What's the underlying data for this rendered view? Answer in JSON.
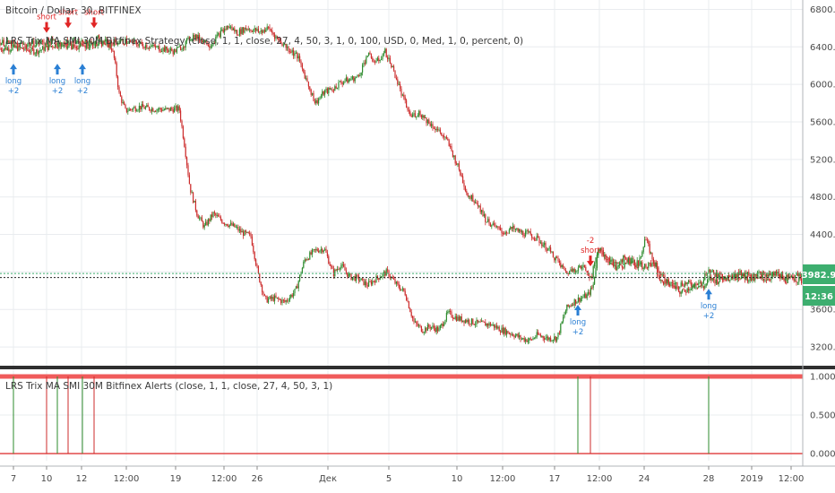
{
  "header": {
    "symbol_line": "Bitcoin / Dollar, 30, BITFINEX",
    "strategy_line": "LRS Trix MA SMI 30M Bitfinex Strategy (close, 1, 1, close, 27, 4, 50, 3, 1, 0, 100, USD, 0, Med, 1, 0, percent, 0)"
  },
  "indicator_panel": {
    "title": "LRS Trix MA SMI 30M Bitfinex Alerts (close, 1, 1, close, 27, 4, 50, 3, 1)"
  },
  "price_axis": {
    "labels": [
      "6800.0",
      "6400.0",
      "6000.0",
      "5600.0",
      "5200.0",
      "4800.0",
      "4400.0",
      "4000.0",
      "3600.0",
      "3200.0"
    ],
    "current_price": "3982.9",
    "countdown": "12:36"
  },
  "indicator_axis": {
    "labels": [
      "1.0000",
      "0.5000",
      "0.0000"
    ]
  },
  "time_axis": {
    "labels": [
      "7",
      "10",
      "12",
      "12:00",
      "19",
      "12:00",
      "26",
      "Дек",
      "5",
      "10",
      "12:00",
      "17",
      "12:00",
      "24",
      "28",
      "2019",
      "12:00"
    ]
  },
  "colors": {
    "up": "#2e8b2e",
    "down": "#cc2b2b",
    "long": "#2a7fd4",
    "short": "#e02424",
    "badge_bg": "#3dae6f",
    "grid": "#e9ecef"
  },
  "signals": {
    "long_label": "long",
    "short_label": "short",
    "long_qty": "+2",
    "short_qty": "-2"
  },
  "chart_data": {
    "type": "candlestick",
    "title": "Bitcoin / Dollar, 30, BITFINEX",
    "ylabel": "",
    "ylim": [
      3000,
      6900
    ],
    "series": [
      {
        "name": "",
        "points": [
          [
            0,
            6380
          ],
          [
            20,
            6390
          ],
          [
            40,
            6350
          ],
          [
            60,
            6420
          ],
          [
            80,
            6450
          ],
          [
            100,
            6430
          ],
          [
            110,
            6500
          ],
          [
            118,
            6450
          ],
          [
            125,
            6380
          ],
          [
            128,
            6250
          ],
          [
            133,
            5900
          ],
          [
            140,
            5720
          ],
          [
            155,
            5760
          ],
          [
            170,
            5740
          ],
          [
            185,
            5730
          ],
          [
            200,
            5740
          ],
          [
            206,
            5350
          ],
          [
            212,
            4900
          ],
          [
            220,
            4620
          ],
          [
            228,
            4480
          ],
          [
            238,
            4620
          ],
          [
            250,
            4530
          ],
          [
            262,
            4480
          ],
          [
            270,
            4420
          ],
          [
            280,
            4380
          ],
          [
            288,
            3980
          ],
          [
            296,
            3700
          ],
          [
            306,
            3720
          ],
          [
            318,
            3680
          ],
          [
            330,
            3800
          ],
          [
            340,
            4130
          ],
          [
            352,
            4230
          ],
          [
            362,
            4250
          ],
          [
            372,
            3980
          ],
          [
            380,
            4080
          ],
          [
            390,
            3950
          ],
          [
            400,
            3930
          ],
          [
            410,
            3860
          ],
          [
            420,
            3930
          ],
          [
            432,
            4000
          ],
          [
            442,
            3870
          ],
          [
            452,
            3780
          ],
          [
            462,
            3460
          ],
          [
            472,
            3380
          ],
          [
            480,
            3420
          ],
          [
            490,
            3380
          ],
          [
            500,
            3560
          ],
          [
            512,
            3500
          ],
          [
            522,
            3480
          ],
          [
            534,
            3450
          ],
          [
            548,
            3440
          ],
          [
            560,
            3380
          ],
          [
            572,
            3340
          ],
          [
            582,
            3290
          ],
          [
            592,
            3270
          ],
          [
            600,
            3330
          ],
          [
            612,
            3290
          ],
          [
            622,
            3300
          ],
          [
            632,
            3610
          ],
          [
            640,
            3680
          ],
          [
            648,
            3720
          ],
          [
            656,
            3750
          ],
          [
            662,
            3850
          ],
          [
            668,
            4280
          ],
          [
            676,
            4150
          ],
          [
            686,
            4050
          ],
          [
            696,
            4080
          ],
          [
            706,
            4120
          ],
          [
            712,
            4040
          ],
          [
            720,
            4370
          ],
          [
            728,
            4150
          ],
          [
            738,
            3890
          ],
          [
            748,
            3880
          ],
          [
            758,
            3870
          ],
          [
            766,
            3880
          ],
          [
            776,
            3860
          ],
          [
            786,
            3840
          ],
          [
            792,
            3930
          ],
          [
            800,
            3900
          ],
          [
            812,
            3970
          ],
          [
            826,
            3950
          ],
          [
            840,
            3920
          ],
          [
            856,
            3930
          ],
          [
            866,
            3970
          ],
          [
            876,
            3910
          ],
          [
            886,
            3930
          ],
          [
            896,
            3900
          ]
        ]
      },
      {
        "name": "",
        "points": [
          [
            0,
            6450
          ],
          [
            20,
            6420
          ],
          [
            40,
            6440
          ],
          [
            60,
            6460
          ],
          [
            80,
            6400
          ],
          [
            100,
            6420
          ],
          [
            120,
            6440
          ],
          [
            140,
            6460
          ],
          [
            160,
            6420
          ],
          [
            180,
            6380
          ],
          [
            195,
            6350
          ],
          [
            205,
            6420
          ],
          [
            215,
            6520
          ],
          [
            225,
            6480
          ],
          [
            235,
            6420
          ],
          [
            245,
            6540
          ],
          [
            255,
            6620
          ],
          [
            265,
            6550
          ],
          [
            275,
            6600
          ],
          [
            290,
            6560
          ],
          [
            300,
            6600
          ],
          [
            310,
            6480
          ],
          [
            322,
            6380
          ],
          [
            332,
            6300
          ],
          [
            342,
            6050
          ],
          [
            352,
            5800
          ],
          [
            362,
            5920
          ],
          [
            372,
            5950
          ],
          [
            380,
            6020
          ],
          [
            390,
            6050
          ],
          [
            400,
            6080
          ],
          [
            410,
            6320
          ],
          [
            420,
            6230
          ],
          [
            430,
            6350
          ],
          [
            440,
            6130
          ],
          [
            448,
            5900
          ],
          [
            458,
            5660
          ],
          [
            468,
            5700
          ],
          [
            478,
            5600
          ],
          [
            490,
            5500
          ],
          [
            500,
            5380
          ],
          [
            512,
            5100
          ],
          [
            522,
            4820
          ],
          [
            532,
            4750
          ],
          [
            542,
            4560
          ],
          [
            552,
            4480
          ],
          [
            562,
            4420
          ],
          [
            572,
            4460
          ],
          [
            582,
            4420
          ],
          [
            592,
            4400
          ],
          [
            602,
            4330
          ],
          [
            612,
            4240
          ],
          [
            622,
            4120
          ],
          [
            632,
            3990
          ],
          [
            642,
            4040
          ],
          [
            652,
            4050
          ],
          [
            660,
            3940
          ],
          [
            668,
            4250
          ],
          [
            676,
            4150
          ],
          [
            686,
            4080
          ],
          [
            696,
            4150
          ],
          [
            706,
            4110
          ],
          [
            714,
            4080
          ],
          [
            722,
            4050
          ],
          [
            730,
            4100
          ],
          [
            740,
            3940
          ],
          [
            750,
            3840
          ],
          [
            760,
            3780
          ],
          [
            770,
            3830
          ],
          [
            782,
            3870
          ],
          [
            790,
            4030
          ],
          [
            800,
            3960
          ],
          [
            812,
            3940
          ],
          [
            826,
            3980
          ],
          [
            840,
            3990
          ],
          [
            856,
            3960
          ],
          [
            866,
            3990
          ],
          [
            876,
            3950
          ],
          [
            886,
            3960
          ],
          [
            896,
            3950
          ]
        ]
      }
    ],
    "signals": [
      {
        "type": "long",
        "x": 15,
        "price": 6220,
        "qty": "+2"
      },
      {
        "type": "short",
        "x": 52,
        "price": 6550,
        "qty": ""
      },
      {
        "type": "long",
        "x": 64,
        "price": 6220,
        "qty": "+2"
      },
      {
        "type": "short",
        "x": 76,
        "price": 6600,
        "qty": ""
      },
      {
        "type": "long",
        "x": 92,
        "price": 6220,
        "qty": "+2"
      },
      {
        "type": "short",
        "x": 105,
        "price": 6600,
        "qty": ""
      },
      {
        "type": "long",
        "x": 645,
        "price": 3650,
        "qty": "+2"
      },
      {
        "type": "short",
        "x": 659,
        "price": 4060,
        "qty": "-2"
      },
      {
        "type": "long",
        "x": 791,
        "price": 3820,
        "qty": "+2"
      }
    ],
    "indicator": {
      "type": "spikes",
      "ylim": [
        0,
        1
      ],
      "spikes": [
        {
          "x": 15,
          "color": "up"
        },
        {
          "x": 52,
          "color": "down"
        },
        {
          "x": 64,
          "color": "up"
        },
        {
          "x": 76,
          "color": "down"
        },
        {
          "x": 92,
          "color": "up"
        },
        {
          "x": 105,
          "color": "down"
        },
        {
          "x": 645,
          "color": "up"
        },
        {
          "x": 659,
          "color": "down"
        },
        {
          "x": 791,
          "color": "up"
        }
      ]
    },
    "price_lines": [
      3982.9,
      3940
    ]
  }
}
